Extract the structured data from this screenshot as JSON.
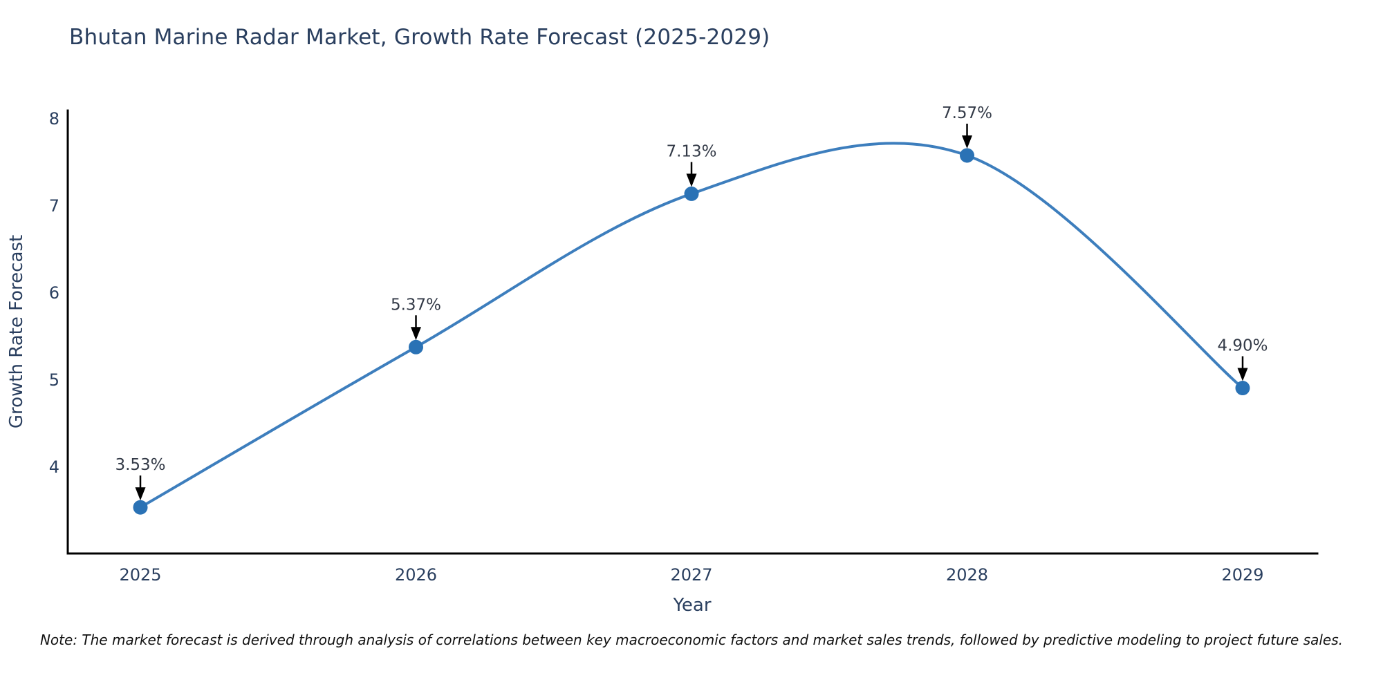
{
  "title": "Bhutan Marine Radar Market, Growth Rate Forecast (2025-2029)",
  "note": "Note: The market forecast is derived through analysis of correlations between key macroeconomic factors and market sales trends, followed by predictive modeling to project future sales.",
  "chart_data": {
    "type": "line",
    "title": "Bhutan Marine Radar Market, Growth Rate Forecast (2025-2029)",
    "x": [
      2025,
      2026,
      2027,
      2028,
      2029
    ],
    "values": [
      3.53,
      5.37,
      7.13,
      7.57,
      4.9
    ],
    "point_labels": [
      "3.53%",
      "5.37%",
      "7.13%",
      "7.57%",
      "4.90%"
    ],
    "xlabel": "Year",
    "ylabel": "Growth Rate Forecast",
    "xticks": [
      "2025",
      "2026",
      "2027",
      "2028",
      "2029"
    ],
    "yticks": [
      4,
      5,
      6,
      7,
      8
    ],
    "xlim": [
      2024.7365,
      2029.271
    ],
    "ylim": [
      3.0,
      8.0855
    ],
    "grid": false,
    "legend": false,
    "curve": "spline",
    "line_color": "#3d7ebd",
    "marker_color": "#2a72b5",
    "annotation_arrow_color": "#000000",
    "axis_color": "#000000",
    "title_color": "#2a3f5f",
    "tick_color": "#2a3f5f"
  }
}
